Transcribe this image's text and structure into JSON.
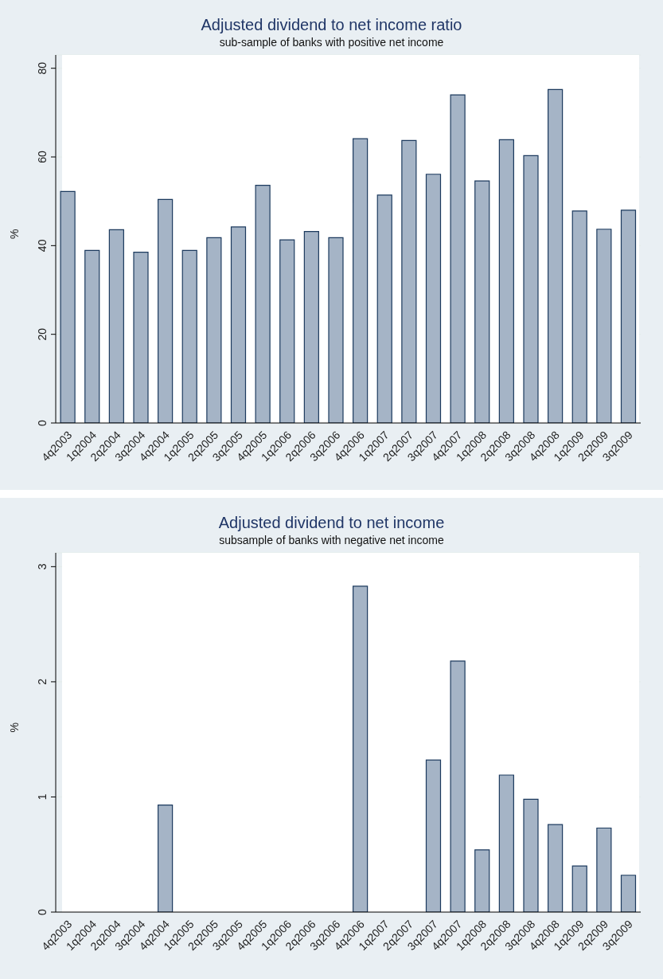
{
  "chart_data": [
    {
      "type": "bar",
      "title": "Adjusted dividend to net income ratio",
      "subtitle": "sub-sample of banks with positive net income",
      "ylabel": "%",
      "categories": [
        "4q2003",
        "1q2004",
        "2q2004",
        "3q2004",
        "4q2004",
        "1q2005",
        "2q2005",
        "3q2005",
        "4q2005",
        "1q2006",
        "2q2006",
        "3q2006",
        "4q2006",
        "1q2007",
        "2q2007",
        "3q2007",
        "4q2007",
        "1q2008",
        "2q2008",
        "3q2008",
        "4q2008",
        "1q2009",
        "2q2009",
        "3q2009"
      ],
      "values": [
        52.2,
        38.9,
        43.6,
        38.5,
        50.4,
        38.9,
        41.8,
        44.2,
        53.6,
        41.3,
        43.2,
        41.8,
        64.1,
        51.4,
        63.7,
        56.1,
        74.0,
        54.6,
        63.9,
        60.3,
        75.2,
        47.8,
        43.7,
        48.0
      ],
      "color": "#a5b4c6",
      "ylim": [
        0,
        83
      ],
      "yticks": [
        0,
        20,
        40,
        60,
        80
      ],
      "grid": "y"
    },
    {
      "type": "bar",
      "title": "Adjusted dividend to net income",
      "subtitle": "subsample of banks with negative net income",
      "ylabel": "%",
      "categories": [
        "4q2003",
        "1q2004",
        "2q2004",
        "3q2004",
        "4q2004",
        "1q2005",
        "2q2005",
        "3q2005",
        "4q2005",
        "1q2006",
        "2q2006",
        "3q2006",
        "4q2006",
        "1q2007",
        "2q2007",
        "3q2007",
        "4q2007",
        "1q2008",
        "2q2008",
        "3q2008",
        "4q2008",
        "1q2009",
        "2q2009",
        "3q2009"
      ],
      "values": [
        null,
        null,
        null,
        null,
        0.93,
        null,
        null,
        null,
        null,
        null,
        null,
        null,
        2.83,
        null,
        null,
        1.32,
        2.18,
        0.54,
        1.19,
        0.98,
        0.76,
        0.4,
        0.73,
        0.32
      ],
      "color": "#a5b4c6",
      "ylim": [
        0,
        3.12
      ],
      "yticks": [
        0,
        1,
        2,
        3
      ],
      "grid": "y"
    }
  ]
}
